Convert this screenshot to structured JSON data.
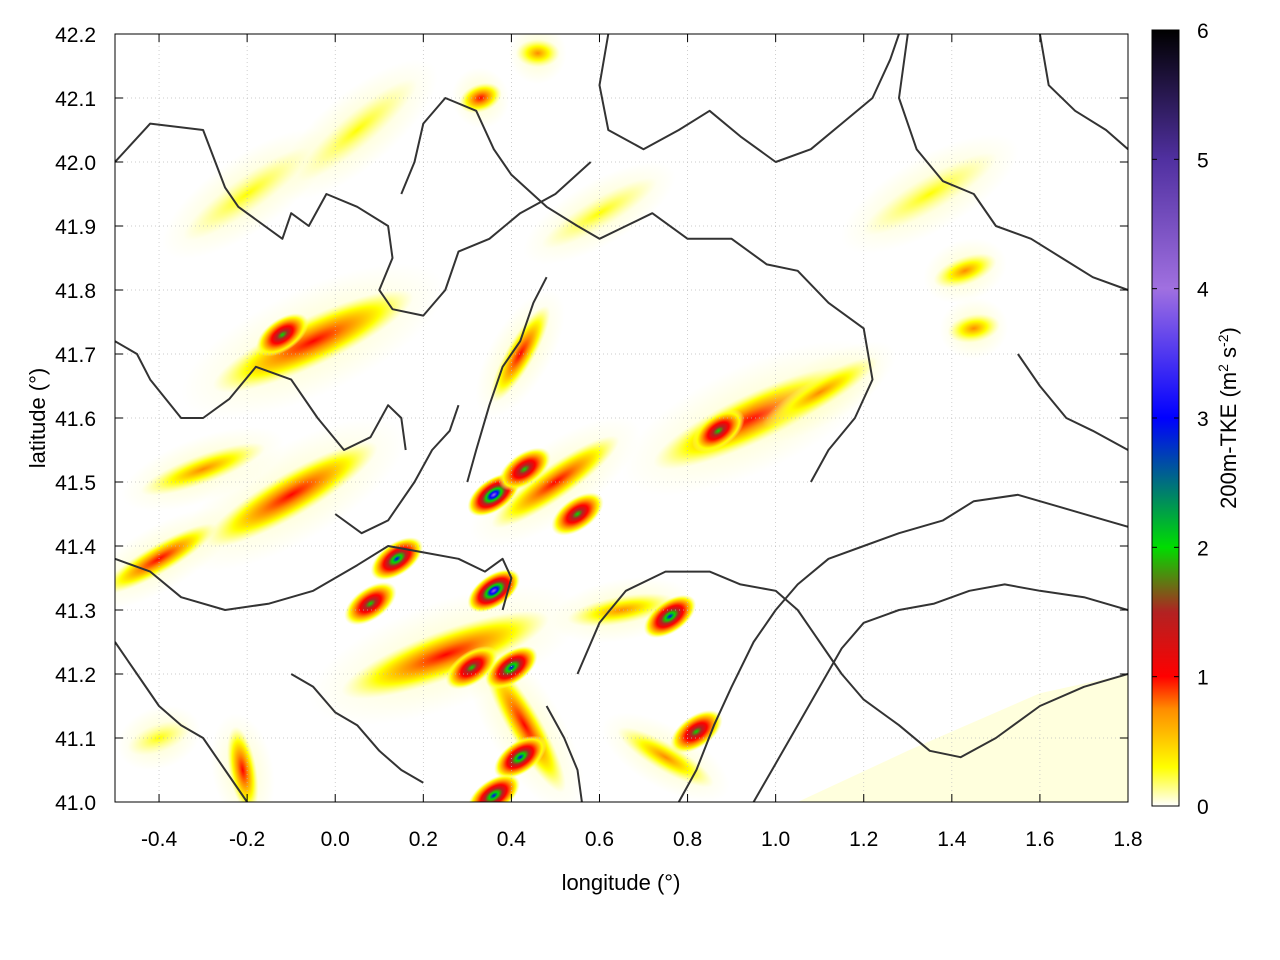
{
  "chart_data": {
    "type": "heatmap",
    "title": "",
    "xlabel": "longitude (°)",
    "ylabel": "latitude (°)",
    "xlim": [
      -0.5,
      1.8
    ],
    "ylim": [
      41.0,
      42.2
    ],
    "xticks": [
      -0.4,
      -0.2,
      0.0,
      0.2,
      0.4,
      0.6,
      0.8,
      1.0,
      1.2,
      1.4,
      1.6,
      1.8
    ],
    "xtick_labels": [
      "-0.4",
      "-0.2",
      "0.0",
      "0.2",
      "0.4",
      "0.6",
      "0.8",
      "1.0",
      "1.2",
      "1.4",
      "1.6",
      "1.8"
    ],
    "yticks": [
      41.0,
      41.1,
      41.2,
      41.3,
      41.4,
      41.5,
      41.6,
      41.7,
      41.8,
      41.9,
      42.0,
      42.1,
      42.2
    ],
    "ytick_labels": [
      "41.0",
      "41.1",
      "41.2",
      "41.3",
      "41.4",
      "41.5",
      "41.6",
      "41.7",
      "41.8",
      "41.9",
      "42.0",
      "42.1",
      "42.2"
    ],
    "grid": true,
    "colorbar": {
      "label_main": "200m-TKE (m",
      "label_sup1": "2",
      "label_mid": " s",
      "label_sup2": "-2",
      "label_end": ")",
      "range": [
        0,
        6
      ],
      "ticks": [
        0,
        1,
        2,
        3,
        4,
        5,
        6
      ],
      "tick_labels": [
        "0",
        "1",
        "2",
        "3",
        "4",
        "5",
        "6"
      ],
      "colors": [
        {
          "value": 0.0,
          "color": "#ffffff"
        },
        {
          "value": 0.3,
          "color": "#ffff00"
        },
        {
          "value": 0.75,
          "color": "#ff8c00"
        },
        {
          "value": 1.0,
          "color": "#ff0000"
        },
        {
          "value": 1.5,
          "color": "#b22222"
        },
        {
          "value": 2.0,
          "color": "#00dd00"
        },
        {
          "value": 3.0,
          "color": "#0000ff"
        },
        {
          "value": 4.0,
          "color": "#a070e0"
        },
        {
          "value": 5.0,
          "color": "#5030a0"
        },
        {
          "value": 6.0,
          "color": "#000000"
        }
      ]
    },
    "contour_color": "#333333",
    "hotspots": [
      {
        "lon": 0.36,
        "lat": 41.48,
        "tke": 4.2
      },
      {
        "lon": 0.36,
        "lat": 41.33,
        "tke": 4.3
      },
      {
        "lon": 0.14,
        "lat": 41.38,
        "tke": 3.6
      },
      {
        "lon": 0.08,
        "lat": 41.31,
        "tke": 2.3
      },
      {
        "lon": 0.43,
        "lat": 41.52,
        "tke": 2.2
      },
      {
        "lon": 0.55,
        "lat": 41.45,
        "tke": 2.8
      },
      {
        "lon": 0.4,
        "lat": 41.21,
        "tke": 3.2
      },
      {
        "lon": 0.31,
        "lat": 41.21,
        "tke": 2.0
      },
      {
        "lon": 0.42,
        "lat": 41.07,
        "tke": 3.3
      },
      {
        "lon": 0.36,
        "lat": 41.01,
        "tke": 3.4
      },
      {
        "lon": 0.76,
        "lat": 41.29,
        "tke": 3.0
      },
      {
        "lon": 0.82,
        "lat": 41.11,
        "tke": 2.0
      },
      {
        "lon": -0.12,
        "lat": 41.73,
        "tke": 2.0
      },
      {
        "lon": 0.87,
        "lat": 41.58,
        "tke": 2.0
      }
    ],
    "streaks": [
      {
        "lon": -0.05,
        "lat": 41.72,
        "len": 0.5,
        "angle": -25,
        "tke": 1.2
      },
      {
        "lon": -0.1,
        "lat": 41.48,
        "len": 0.45,
        "angle": -30,
        "tke": 1.0
      },
      {
        "lon": -0.4,
        "lat": 41.38,
        "len": 0.3,
        "angle": -30,
        "tke": 1.0
      },
      {
        "lon": -0.3,
        "lat": 41.52,
        "len": 0.3,
        "angle": -20,
        "tke": 0.8
      },
      {
        "lon": 0.25,
        "lat": 41.23,
        "len": 0.5,
        "angle": -20,
        "tke": 1.1
      },
      {
        "lon": 0.5,
        "lat": 41.5,
        "len": 0.35,
        "angle": -35,
        "tke": 1.3
      },
      {
        "lon": 0.42,
        "lat": 41.7,
        "len": 0.25,
        "angle": -60,
        "tke": 1.0
      },
      {
        "lon": 0.95,
        "lat": 41.6,
        "len": 0.5,
        "angle": -25,
        "tke": 1.2
      },
      {
        "lon": 1.1,
        "lat": 41.64,
        "len": 0.3,
        "angle": -30,
        "tke": 0.9
      },
      {
        "lon": 0.65,
        "lat": 41.3,
        "len": 0.25,
        "angle": -10,
        "tke": 0.9
      },
      {
        "lon": 0.43,
        "lat": 41.12,
        "len": 0.35,
        "angle": 60,
        "tke": 1.0
      },
      {
        "lon": 0.75,
        "lat": 41.07,
        "len": 0.25,
        "angle": 30,
        "tke": 0.9
      },
      {
        "lon": -0.21,
        "lat": 41.05,
        "len": 0.2,
        "angle": 80,
        "tke": 1.0
      },
      {
        "lon": -0.4,
        "lat": 41.1,
        "len": 0.15,
        "angle": -20,
        "tke": 0.7
      },
      {
        "lon": 0.33,
        "lat": 42.1,
        "len": 0.1,
        "angle": -20,
        "tke": 1.0
      },
      {
        "lon": 1.45,
        "lat": 41.74,
        "len": 0.12,
        "angle": -10,
        "tke": 0.9
      },
      {
        "lon": 0.46,
        "lat": 42.17,
        "len": 0.1,
        "angle": 0,
        "tke": 0.8
      },
      {
        "lon": 1.43,
        "lat": 41.83,
        "len": 0.15,
        "angle": -20,
        "tke": 0.8
      },
      {
        "lon": -0.2,
        "lat": 41.95,
        "len": 0.35,
        "angle": -35,
        "tke": 0.5
      },
      {
        "lon": 0.05,
        "lat": 42.05,
        "len": 0.35,
        "angle": -40,
        "tke": 0.5
      },
      {
        "lon": 1.35,
        "lat": 41.95,
        "len": 0.35,
        "angle": -30,
        "tke": 0.4
      },
      {
        "lon": 0.6,
        "lat": 41.92,
        "len": 0.3,
        "angle": -30,
        "tke": 0.4
      }
    ]
  }
}
